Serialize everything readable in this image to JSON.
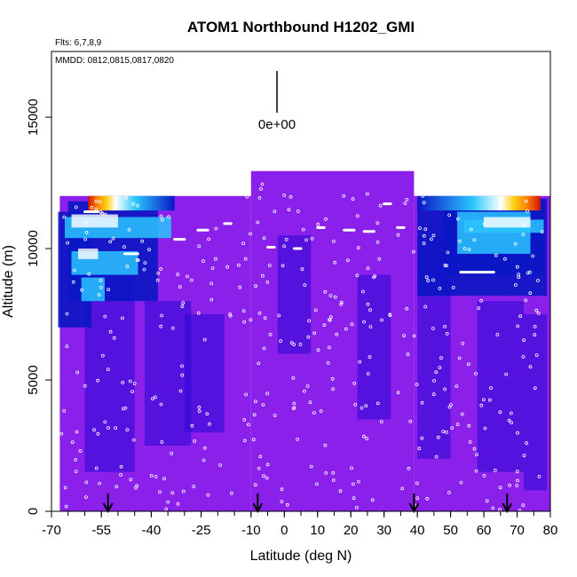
{
  "chart_data": {
    "type": "heatmap",
    "title": "ATOM1 Northbound H1202_GMI",
    "notes": [
      "Flts: 6,7,8,9",
      "MMDD: 0812,0815,0817,0820"
    ],
    "xlabel": "Latitude (deg N)",
    "ylabel": "Altitude (m)",
    "xlim": [
      -70,
      80
    ],
    "ylim": [
      0,
      17500
    ],
    "x_ticks": [
      -70,
      -55,
      -40,
      -25,
      -10,
      0,
      10,
      20,
      30,
      40,
      50,
      60,
      70,
      80
    ],
    "x_minor_step": 5,
    "y_ticks": [
      0,
      5000,
      10000,
      15000
    ],
    "colorbar_label": "0e+00",
    "flight_arrow_latitudes": [
      -53,
      -8,
      39,
      67
    ],
    "colors": {
      "background": "#8a20ea",
      "low": "#2a08d6",
      "deep_blue": "#0a16c4",
      "light_blue": "#2ac6ff",
      "white": "#ffffff",
      "yellow": "#ffd21a",
      "orange": "#ff8a00",
      "red": "#d41200"
    },
    "grid": false,
    "legend": "none"
  }
}
